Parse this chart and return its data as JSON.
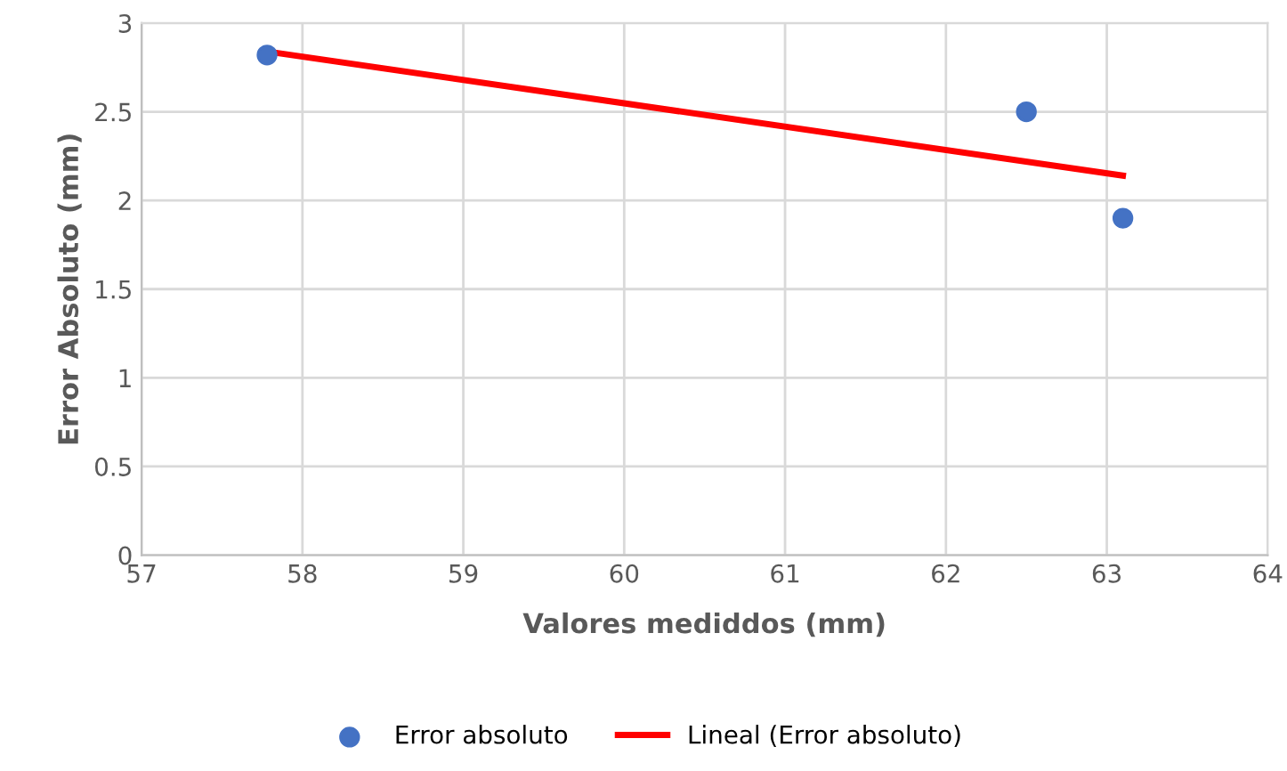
{
  "chart_data": {
    "type": "scatter",
    "xlabel": "Valores mediddos (mm)",
    "ylabel": "Error Absoluto (mm)",
    "xlim": [
      57,
      64
    ],
    "xticks": [
      57,
      58,
      59,
      60,
      61,
      62,
      63,
      64
    ],
    "ylim": [
      0,
      3
    ],
    "yticks": [
      0,
      {
        "value": 0.5,
        "label": "0.5"
      },
      1,
      {
        "value": 1.5,
        "label": "1.5"
      },
      2,
      {
        "value": 2.5,
        "label": "2.5"
      },
      3
    ],
    "grid": true,
    "legend": "bottom",
    "series": [
      {
        "name": "Error absoluto",
        "marker": "circle",
        "color": "#4472c4",
        "x": [
          57.78,
          62.5,
          63.1
        ],
        "values": [
          2.82,
          2.5,
          1.9
        ]
      },
      {
        "name": "Lineal (Error absoluto)",
        "type": "line",
        "color": "#ff0000",
        "line_style": "solid",
        "x": [
          57.78,
          63.1
        ],
        "values": [
          2.84,
          2.14
        ]
      }
    ]
  }
}
